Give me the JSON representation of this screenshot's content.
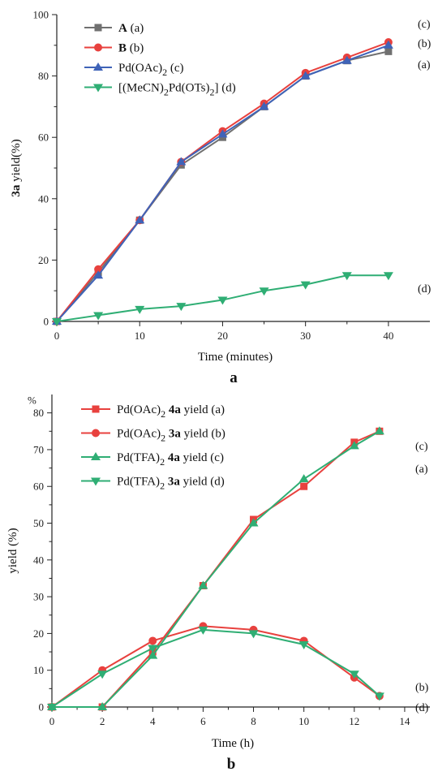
{
  "chart_data": [
    {
      "type": "line",
      "panel_label": "a",
      "xlabel": "Time (minutes)",
      "ylabel_bold": "3a",
      "ylabel_rest": " yield(%)",
      "xlim": [
        0,
        45
      ],
      "ylim": [
        0,
        100
      ],
      "xticks": [
        "0",
        "10",
        "20",
        "30",
        "40"
      ],
      "yticks": [
        "0",
        "20",
        "40",
        "60",
        "80",
        "100"
      ],
      "grid": false,
      "legend_placement": "top-left",
      "x": [
        0,
        5,
        10,
        15,
        20,
        25,
        30,
        35,
        40
      ],
      "series": [
        {
          "legend_main": "A",
          "legend_bold": true,
          "legend_sub": "",
          "legend_tail": " (a)",
          "color": "#707070",
          "marker": "square",
          "end_label": "(a)",
          "values": [
            0,
            16,
            33,
            51,
            60,
            70,
            80,
            85,
            88
          ]
        },
        {
          "legend_main": "B",
          "legend_bold": true,
          "legend_sub": "",
          "legend_tail": " (b)",
          "color": "#e8413e",
          "marker": "circle",
          "end_label": "(b)",
          "values": [
            0,
            17,
            33,
            52,
            62,
            71,
            81,
            86,
            91
          ]
        },
        {
          "legend_main": "Pd(OAc)",
          "legend_bold": false,
          "legend_sub": "2",
          "legend_tail": " (c)",
          "color": "#3f63b8",
          "marker": "triangle-up",
          "end_label": "(c)",
          "values": [
            0,
            15,
            33,
            52,
            61,
            70,
            80,
            85,
            90
          ]
        },
        {
          "legend_main": "[(MeCN)",
          "legend_bold": false,
          "legend_sub": "2",
          "legend_mid": "Pd(OTs)",
          "legend_sub2": "2",
          "legend_tail": "] (d)",
          "color": "#2fae74",
          "marker": "triangle-down",
          "end_label": "(d)",
          "values": [
            0,
            2,
            4,
            5,
            7,
            10,
            12,
            15,
            15
          ]
        }
      ]
    },
    {
      "type": "line",
      "panel_label": "b",
      "xlabel": "Time (h)",
      "ylabel": "yield (%)",
      "xlim": [
        0,
        15
      ],
      "ylim": [
        0,
        85
      ],
      "xticks": [
        "0",
        "2",
        "4",
        "6",
        "8",
        "10",
        "12",
        "14"
      ],
      "yticks": [
        "0",
        "10",
        "20",
        "30",
        "40",
        "50",
        "60",
        "70",
        "80"
      ],
      "ytick_suffix_top": "80 %",
      "grid": false,
      "legend_placement": "top-left",
      "x": [
        0,
        2,
        4,
        6,
        8,
        10,
        12,
        13
      ],
      "series": [
        {
          "legend_main": "Pd(OAc)",
          "legend_sub": "2",
          "legend_bold_part": "4a",
          "legend_tail": " yield (a)",
          "color": "#e8413e",
          "marker": "square",
          "end_label": "(a)",
          "values": [
            0,
            0,
            15,
            33,
            51,
            60,
            72,
            75
          ]
        },
        {
          "legend_main": "Pd(OAc)",
          "legend_sub": "2",
          "legend_bold_part": "3a",
          "legend_tail": " yield (b)",
          "color": "#e8413e",
          "marker": "circle",
          "end_label": "(b)",
          "values": [
            0,
            10,
            18,
            22,
            21,
            18,
            8,
            3
          ]
        },
        {
          "legend_main": "Pd(TFA)",
          "legend_sub": "2",
          "legend_bold_part": "4a",
          "legend_tail": " yield (c)",
          "color": "#2fae74",
          "marker": "triangle-up",
          "end_label": "(c)",
          "values": [
            0,
            0,
            14,
            33,
            50,
            62,
            71,
            75
          ]
        },
        {
          "legend_main": "Pd(TFA)",
          "legend_sub": "2",
          "legend_bold_part": "3a",
          "legend_tail": " yield (d)",
          "color": "#2fae74",
          "marker": "triangle-down",
          "end_label": "(d)",
          "values": [
            0,
            9,
            16,
            21,
            20,
            17,
            9,
            3
          ]
        }
      ]
    }
  ]
}
